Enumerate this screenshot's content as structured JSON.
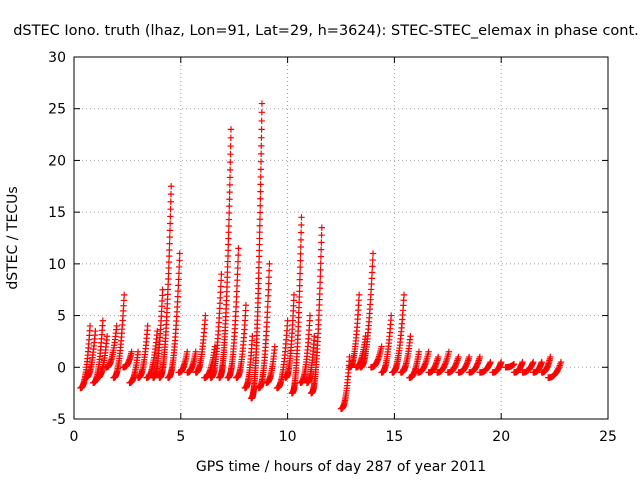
{
  "chart_data": {
    "type": "scatter",
    "title": "dSTEC Iono. truth (lhaz, Lon=91, Lat=29, h=3624): STEC-STEC_elemax in phase cont.",
    "xlabel": "GPS time / hours of day 287 of year 2011",
    "ylabel": "dSTEC  / TECUs",
    "xlim": [
      0,
      25
    ],
    "ylim": [
      -5,
      30
    ],
    "xticks": [
      0,
      5,
      10,
      15,
      20,
      25
    ],
    "yticks": [
      -5,
      0,
      5,
      10,
      15,
      20,
      25,
      30
    ],
    "grid": true,
    "marker": "+",
    "colors": {
      "series": "#ff0000",
      "grid": "#a0a0a0",
      "axis": "#000000"
    },
    "series": [
      {
        "name": "dSTEC",
        "arcs": [
          {
            "t0": 0.3,
            "t1": 0.75,
            "p": [
              -2,
              4
            ]
          },
          {
            "t0": 0.55,
            "t1": 1.0,
            "p": [
              -1,
              3.5
            ]
          },
          {
            "t0": 0.9,
            "t1": 1.35,
            "p": [
              -1.5,
              4.5
            ]
          },
          {
            "t0": 1.1,
            "t1": 1.55,
            "p": [
              -1,
              3
            ]
          },
          {
            "t0": 1.5,
            "t1": 2.0,
            "p": [
              0,
              4
            ]
          },
          {
            "t0": 1.85,
            "t1": 2.35,
            "p": [
              -1,
              7
            ]
          },
          {
            "t0": 2.3,
            "t1": 2.7,
            "p": [
              0,
              1.5
            ]
          },
          {
            "t0": 2.6,
            "t1": 3.0,
            "p": [
              -1.5,
              1.5
            ]
          },
          {
            "t0": 3.0,
            "t1": 3.45,
            "p": [
              -1,
              4
            ]
          },
          {
            "t0": 3.4,
            "t1": 3.9,
            "p": [
              -1,
              3.5
            ]
          },
          {
            "t0": 3.7,
            "t1": 4.15,
            "p": [
              -1,
              7.5
            ]
          },
          {
            "t0": 4.0,
            "t1": 4.55,
            "p": [
              -1,
              17.5
            ]
          },
          {
            "t0": 4.4,
            "t1": 4.95,
            "p": [
              -1,
              11
            ]
          },
          {
            "t0": 4.9,
            "t1": 5.3,
            "p": [
              -0.5,
              1.5
            ]
          },
          {
            "t0": 5.3,
            "t1": 5.7,
            "p": [
              -0.5,
              1.5
            ]
          },
          {
            "t0": 5.7,
            "t1": 6.15,
            "p": [
              -0.5,
              5
            ]
          },
          {
            "t0": 6.1,
            "t1": 6.6,
            "p": [
              -1,
              2
            ]
          },
          {
            "t0": 6.4,
            "t1": 6.9,
            "p": [
              -1,
              9
            ]
          },
          {
            "t0": 6.8,
            "t1": 7.35,
            "p": [
              -1,
              23
            ]
          },
          {
            "t0": 7.2,
            "t1": 7.7,
            "p": [
              -1,
              11.5
            ]
          },
          {
            "t0": 7.6,
            "t1": 8.05,
            "p": [
              -1,
              6
            ]
          },
          {
            "t0": 8.0,
            "t1": 8.35,
            "p": [
              -2,
              3
            ]
          },
          {
            "t0": 8.3,
            "t1": 8.8,
            "p": [
              -3,
              25.5
            ]
          },
          {
            "t0": 8.65,
            "t1": 9.15,
            "p": [
              -2,
              10
            ]
          },
          {
            "t0": 9.0,
            "t1": 9.4,
            "p": [
              -1.5,
              2
            ]
          },
          {
            "t0": 9.5,
            "t1": 10.0,
            "p": [
              -2,
              4.5
            ]
          },
          {
            "t0": 9.9,
            "t1": 10.3,
            "p": [
              -1,
              7
            ]
          },
          {
            "t0": 10.2,
            "t1": 10.65,
            "p": [
              -2.5,
              14.5
            ]
          },
          {
            "t0": 10.6,
            "t1": 11.05,
            "p": [
              -1.5,
              5
            ]
          },
          {
            "t0": 10.9,
            "t1": 11.25,
            "p": [
              -1.5,
              3
            ]
          },
          {
            "t0": 11.1,
            "t1": 11.6,
            "p": [
              -2.5,
              13.5
            ]
          },
          {
            "t0": 12.5,
            "t1": 12.9,
            "p": [
              -4,
              1
            ]
          },
          {
            "t0": 12.9,
            "t1": 13.35,
            "p": [
              0,
              7
            ]
          },
          {
            "t0": 13.2,
            "t1": 13.65,
            "p": [
              0,
              3
            ]
          },
          {
            "t0": 13.4,
            "t1": 14.0,
            "p": [
              0,
              11
            ]
          },
          {
            "t0": 13.9,
            "t1": 14.4,
            "p": [
              0,
              2
            ]
          },
          {
            "t0": 14.4,
            "t1": 14.85,
            "p": [
              -0.5,
              5
            ]
          },
          {
            "t0": 14.9,
            "t1": 15.45,
            "p": [
              -0.5,
              7
            ]
          },
          {
            "t0": 15.3,
            "t1": 15.75,
            "p": [
              -0.5,
              3
            ]
          },
          {
            "t0": 15.7,
            "t1": 16.15,
            "p": [
              -1,
              1.5
            ]
          },
          {
            "t0": 16.1,
            "t1": 16.6,
            "p": [
              -0.5,
              1.5
            ]
          },
          {
            "t0": 16.6,
            "t1": 17.05,
            "p": [
              -0.5,
              1
            ]
          },
          {
            "t0": 17.0,
            "t1": 17.55,
            "p": [
              -0.5,
              1.5
            ]
          },
          {
            "t0": 17.5,
            "t1": 18.0,
            "p": [
              -0.5,
              1
            ]
          },
          {
            "t0": 18.0,
            "t1": 18.5,
            "p": [
              -0.5,
              1
            ]
          },
          {
            "t0": 18.5,
            "t1": 19.0,
            "p": [
              -0.5,
              1
            ]
          },
          {
            "t0": 19.0,
            "t1": 19.5,
            "p": [
              -0.5,
              0.5
            ]
          },
          {
            "t0": 19.6,
            "t1": 20.0,
            "p": [
              -0.5,
              0.5
            ]
          },
          {
            "t0": 20.2,
            "t1": 20.6,
            "p": [
              0,
              0.3
            ]
          },
          {
            "t0": 20.6,
            "t1": 21.0,
            "p": [
              -0.5,
              0.5
            ]
          },
          {
            "t0": 21.0,
            "t1": 21.5,
            "p": [
              -0.5,
              0.5
            ]
          },
          {
            "t0": 21.5,
            "t1": 21.9,
            "p": [
              -0.5,
              0.5
            ]
          },
          {
            "t0": 21.9,
            "t1": 22.3,
            "p": [
              -0.5,
              1
            ]
          },
          {
            "t0": 22.2,
            "t1": 22.8,
            "p": [
              -1,
              0.5
            ]
          }
        ]
      }
    ]
  }
}
